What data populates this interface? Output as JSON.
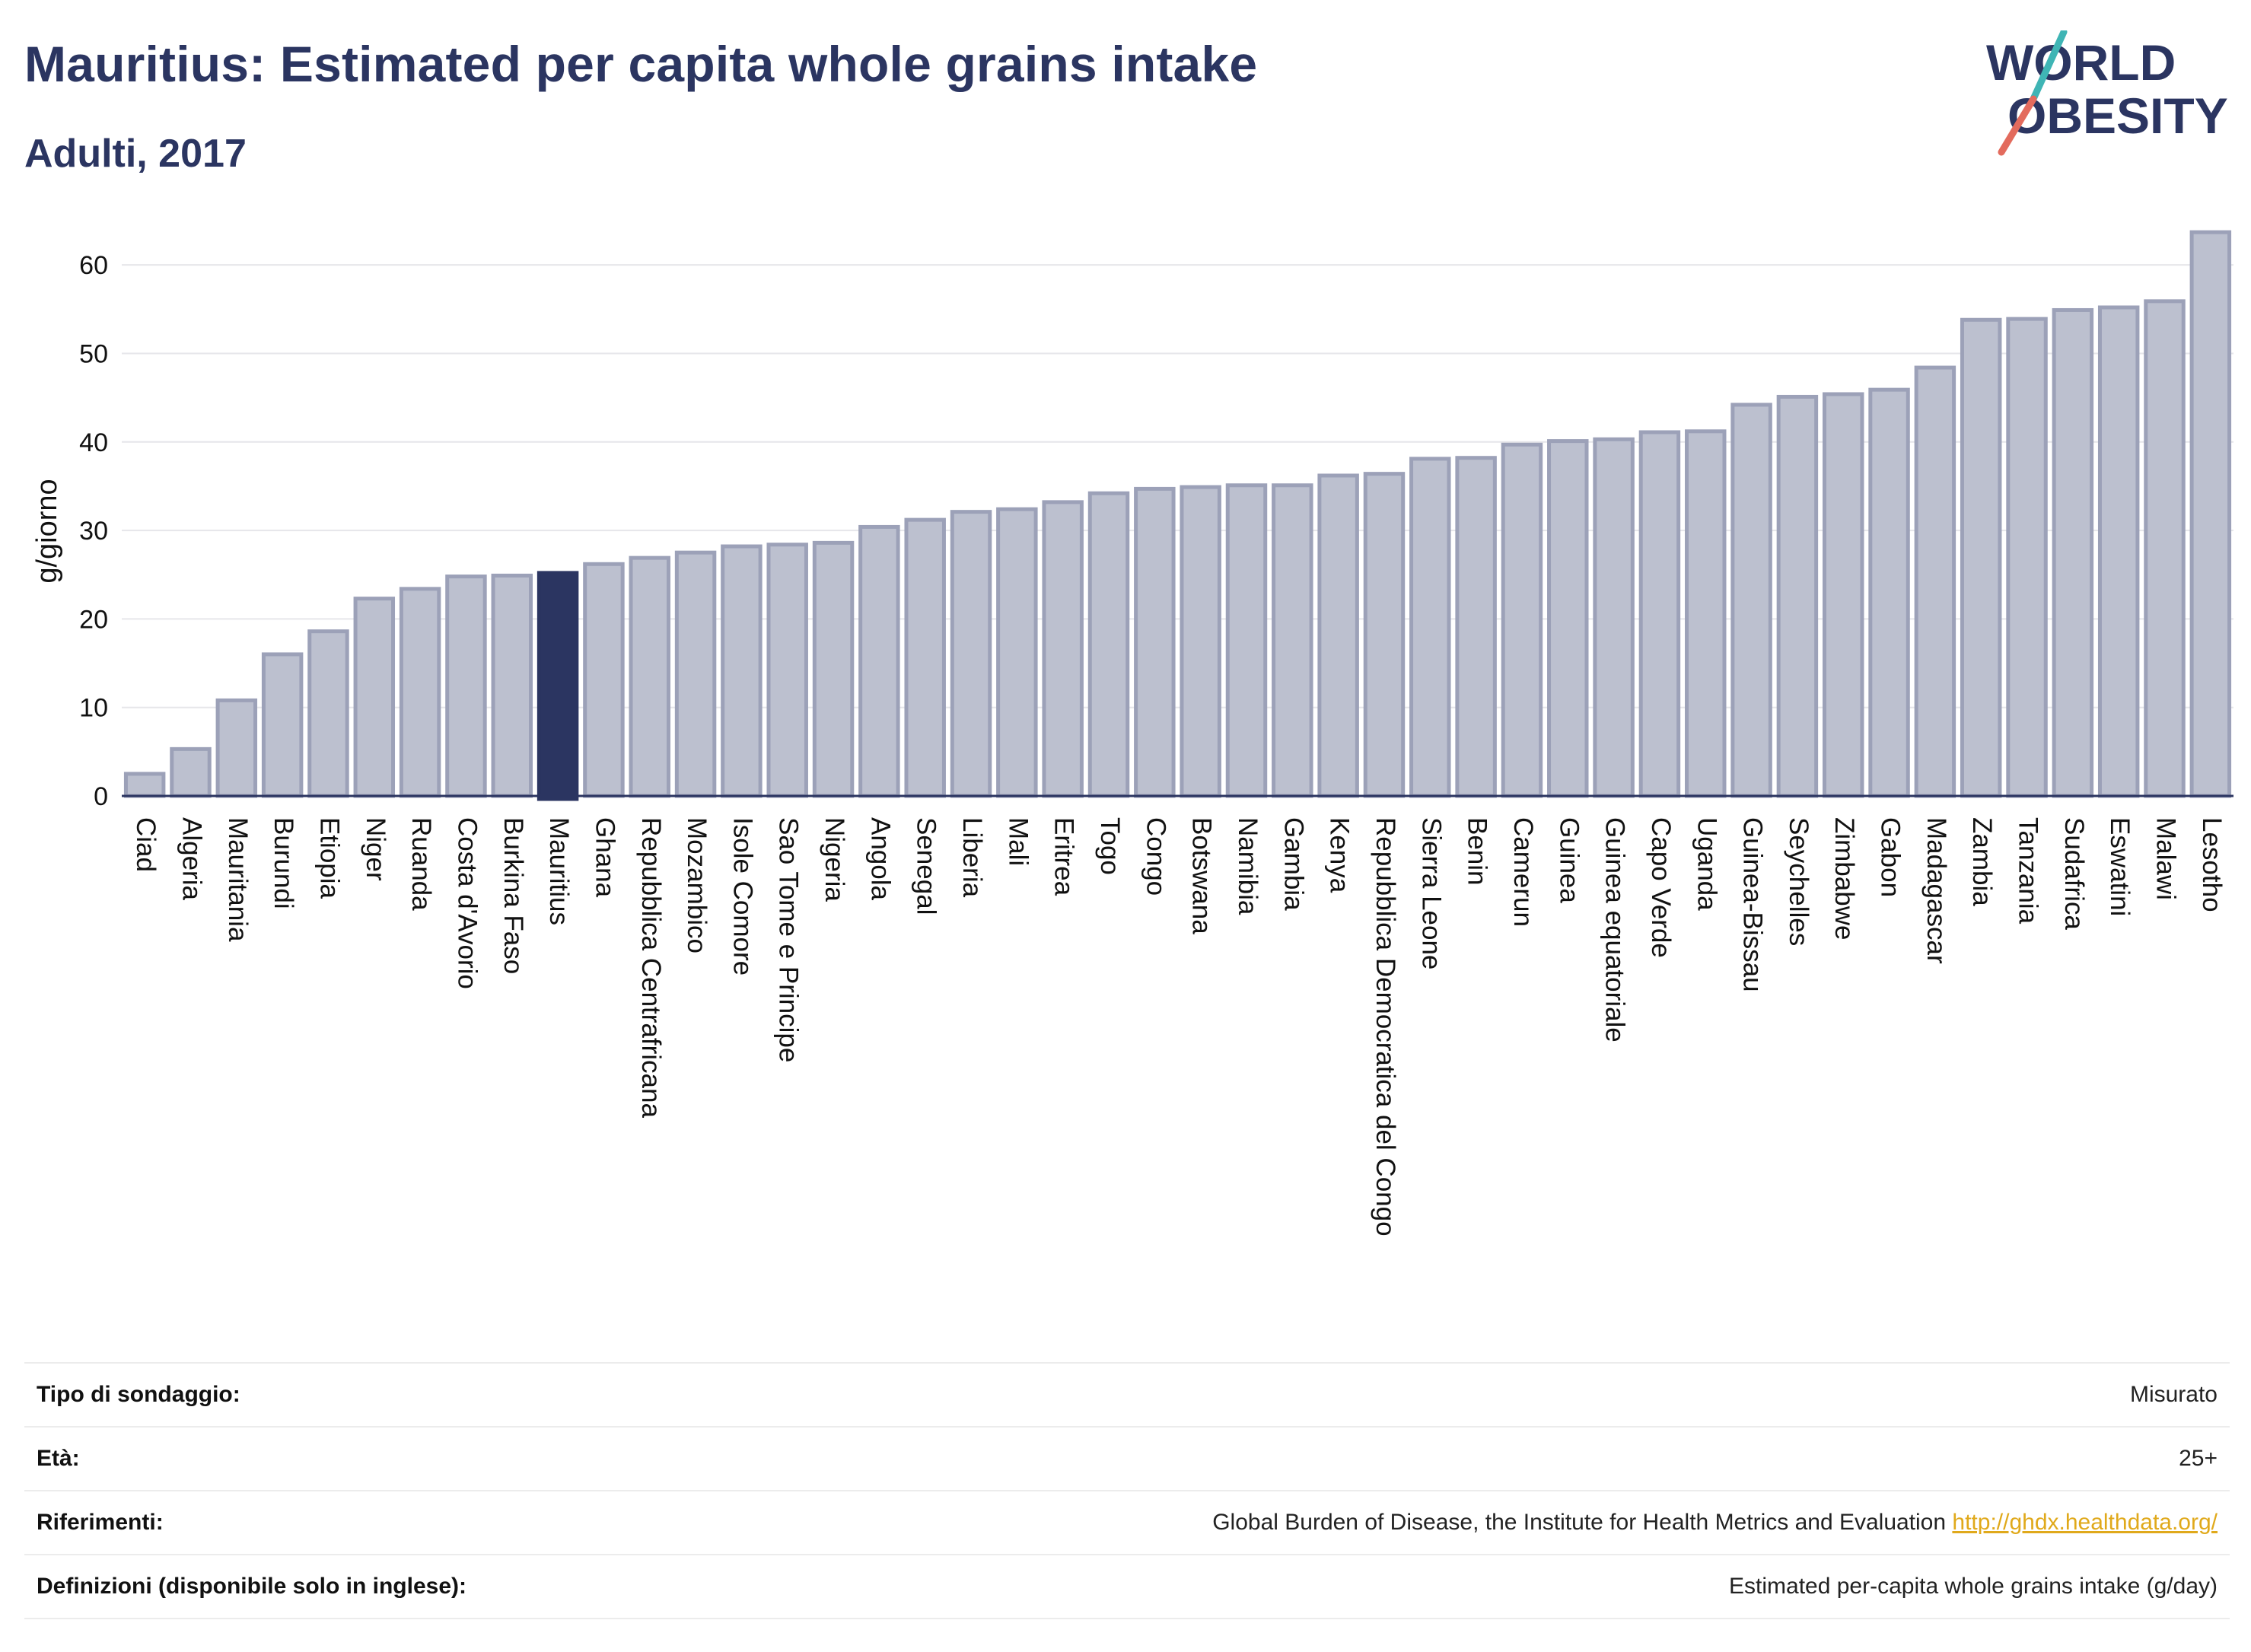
{
  "header": {
    "title": "Mauritius: Estimated per capita whole grains intake",
    "subtitle": "Adulti, 2017"
  },
  "logo": {
    "line1": "WORLD",
    "line2": "OBESITY",
    "icon": "world-obesity-logo"
  },
  "colors": {
    "bar": "#bcc0cf",
    "bar_edge": "#9ca1b8",
    "highlight": "#2b3561",
    "title": "#2b3561",
    "link": "#e0a91b"
  },
  "chart_data": {
    "type": "bar",
    "title": "Mauritius: Estimated per capita whole grains intake",
    "subtitle": "Adulti, 2017",
    "xlabel": "",
    "ylabel": "g/giorno",
    "ylim": [
      0,
      65
    ],
    "yticks": [
      0,
      10,
      20,
      30,
      40,
      50,
      60
    ],
    "grid": true,
    "highlight": "Mauritius",
    "categories": [
      "Ciad",
      "Algeria",
      "Mauritania",
      "Burundi",
      "Etiopia",
      "Niger",
      "Ruanda",
      "Costa d'Avorio",
      "Burkina Faso",
      "Mauritius",
      "Ghana",
      "Repubblica Centrafricana",
      "Mozambico",
      "Isole Comore",
      "Sao Tome e Principe",
      "Nigeria",
      "Angola",
      "Senegal",
      "Liberia",
      "Mali",
      "Eritrea",
      "Togo",
      "Congo",
      "Botswana",
      "Namibia",
      "Gambia",
      "Kenya",
      "Repubblica Democratica del Congo",
      "Sierra Leone",
      "Benin",
      "Camerun",
      "Guinea",
      "Guinea equatoriale",
      "Capo Verde",
      "Uganda",
      "Guinea-Bissau",
      "Seychelles",
      "Zimbabwe",
      "Gabon",
      "Madagascar",
      "Zambia",
      "Tanzania",
      "Sudafrica",
      "Eswatini",
      "Malawi",
      "Lesotho"
    ],
    "values": [
      2.5,
      5.3,
      10.8,
      16.0,
      18.6,
      22.3,
      23.4,
      24.8,
      24.9,
      25.2,
      26.2,
      26.9,
      27.5,
      28.2,
      28.4,
      28.6,
      30.4,
      31.2,
      32.1,
      32.4,
      33.2,
      34.2,
      34.7,
      34.9,
      35.1,
      35.1,
      36.2,
      36.4,
      38.1,
      38.2,
      39.7,
      40.1,
      40.3,
      41.1,
      41.2,
      44.2,
      45.1,
      45.4,
      45.9,
      48.4,
      53.8,
      53.9,
      54.9,
      55.2,
      55.9,
      63.7
    ]
  },
  "info": [
    {
      "label": "Tipo di sondaggio:",
      "value": "Misurato"
    },
    {
      "label": "Età:",
      "value": "25+"
    },
    {
      "label": "Riferimenti:",
      "value": "Global Burden of Disease, the Institute for Health Metrics and Evaluation",
      "link": "http://ghdx.healthdata.org/"
    },
    {
      "label": "Definizioni (disponibile solo in inglese):",
      "value": "Estimated per-capita whole grains intake (g/day)"
    }
  ]
}
